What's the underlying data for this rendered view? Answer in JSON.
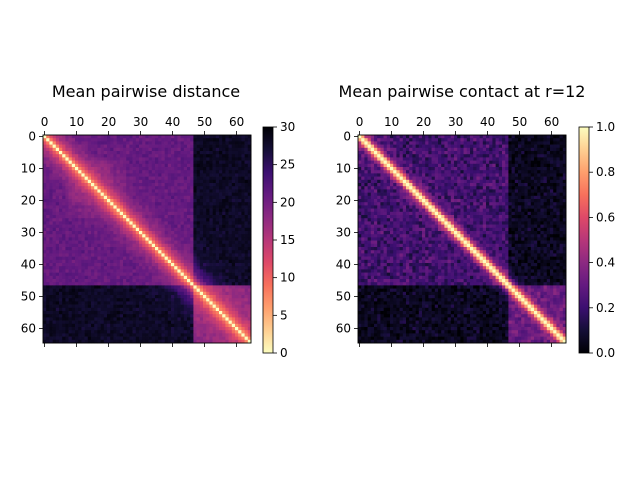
{
  "chart_data": [
    {
      "type": "heatmap",
      "title": "Mean pairwise distance",
      "matrix_size": 65,
      "x_ticks": [
        0,
        10,
        20,
        30,
        40,
        50,
        60
      ],
      "y_ticks": [
        0,
        10,
        20,
        30,
        40,
        50,
        60
      ],
      "colormap": "magma_r",
      "value_range": [
        0,
        30
      ],
      "colorbar_ticks": [
        0,
        5,
        10,
        15,
        20,
        25,
        30
      ],
      "diagonal_value": 0,
      "structure": {
        "background_level": 21,
        "block_boundary": 47,
        "cross_block_level": 28,
        "late_block_level": 18,
        "near_diagonal_min": 3.8
      }
    },
    {
      "type": "heatmap",
      "title": "Mean pairwise contact at r=12",
      "matrix_size": 65,
      "x_ticks": [
        0,
        10,
        20,
        30,
        40,
        50,
        60
      ],
      "y_ticks": [
        0,
        10,
        20,
        30,
        40,
        50,
        60
      ],
      "colormap": "magma",
      "value_range": [
        0.0,
        1.0
      ],
      "colorbar_ticks": [
        "0.0",
        "0.2",
        "0.4",
        "0.6",
        "0.8",
        "1.0"
      ],
      "diagonal_value": 1.0,
      "structure": {
        "background_level": 0.22,
        "block_boundary": 47,
        "cross_block_level": 0.06,
        "late_block_level": 0.3,
        "near_diagonal_max": 0.85
      }
    }
  ]
}
